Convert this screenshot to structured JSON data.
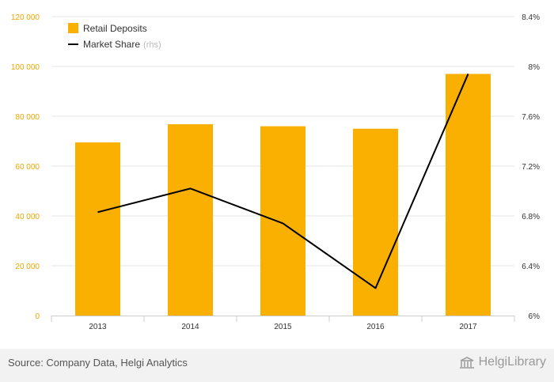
{
  "chart_data": {
    "type": "bar",
    "categories": [
      "2013",
      "2014",
      "2015",
      "2016",
      "2017"
    ],
    "series": [
      {
        "name": "Retail Deposits",
        "kind": "bar",
        "axis": "left",
        "values": [
          69500,
          76800,
          76000,
          75000,
          97000
        ],
        "color": "#f9b000"
      },
      {
        "name": "Market Share",
        "kind": "line",
        "axis": "right",
        "values": [
          6.83,
          7.02,
          6.74,
          6.22,
          7.94
        ],
        "color": "#000000"
      }
    ],
    "legend": {
      "items": [
        {
          "label": "Retail Deposits",
          "suffix": ""
        },
        {
          "label": "Market Share",
          "suffix": "(rhs)"
        }
      ],
      "position": "top-left"
    },
    "y_left": {
      "ylim": [
        0,
        120000
      ],
      "ticks": [
        {
          "value": 0,
          "label": "0"
        },
        {
          "value": 20000,
          "label": "20 000"
        },
        {
          "value": 40000,
          "label": "40 000"
        },
        {
          "value": 60000,
          "label": "60 000"
        },
        {
          "value": 80000,
          "label": "80 000"
        },
        {
          "value": 100000,
          "label": "100 000"
        },
        {
          "value": 120000,
          "label": "120 000"
        }
      ]
    },
    "y_right": {
      "ylim": [
        6.0,
        8.4
      ],
      "ticks": [
        {
          "value": 6.0,
          "label": "6%"
        },
        {
          "value": 6.4,
          "label": "6.4%"
        },
        {
          "value": 6.8,
          "label": "6.8%"
        },
        {
          "value": 7.2,
          "label": "7.2%"
        },
        {
          "value": 7.6,
          "label": "7.6%"
        },
        {
          "value": 8.0,
          "label": "8%"
        },
        {
          "value": 8.4,
          "label": "8.4%"
        }
      ]
    },
    "grid": true,
    "title": ""
  },
  "footer": {
    "source": "Source: Company Data, Helgi Analytics",
    "brand": "HelgiLibrary",
    "brand_icon": "library-building-icon"
  },
  "colors": {
    "left_axis": "#f0a500",
    "grid": "#e6e6e6",
    "footer_bg": "#f2f2f2"
  }
}
